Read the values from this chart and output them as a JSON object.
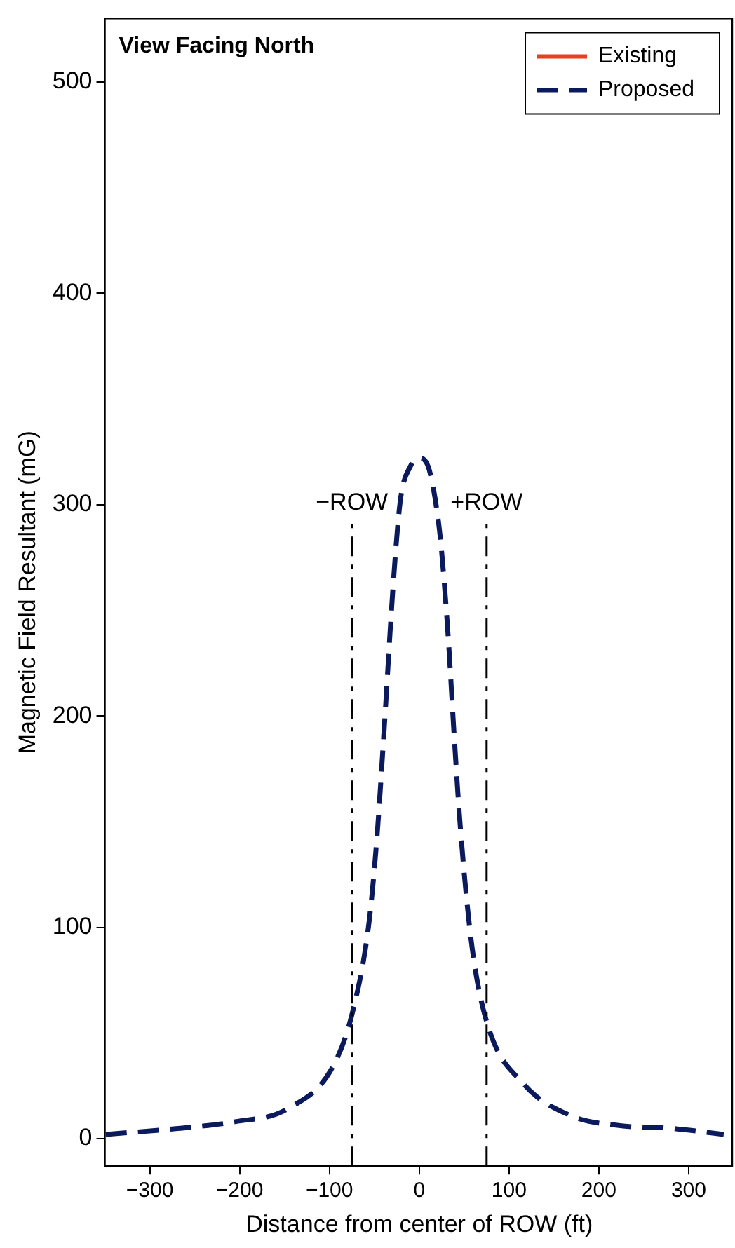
{
  "chart_data": {
    "type": "line",
    "xlabel": "Distance from center of ROW (ft)",
    "ylabel": "Magnetic Field Resultant (mG)",
    "xlim": [
      -350,
      350
    ],
    "xticks": [
      -300,
      -200,
      -100,
      0,
      100,
      200,
      300
    ],
    "ylim": [
      -13,
      530
    ],
    "yticks": [
      0,
      100,
      200,
      300,
      400,
      500
    ],
    "grid": false,
    "legend": "top right",
    "marker": "none",
    "annotations": [
      "View Facing North"
    ],
    "ref_lines": [
      {
        "axis": "x",
        "value": -75,
        "label": "−ROW",
        "color": "#000000",
        "line_style": "dashdot"
      },
      {
        "axis": "x",
        "value": 75,
        "label": "+ROW",
        "color": "#000000",
        "line_style": "dashdot"
      }
    ],
    "series": [
      {
        "name": "Existing",
        "color": "#e8401c",
        "line_style": "solid"
      },
      {
        "name": "Proposed",
        "color": "#0a1a5c",
        "line_style": "dashed",
        "x": [
          -349,
          -264,
          -205,
          -147,
          -95,
          -73,
          -56,
          -47,
          -39,
          -29,
          -21,
          -10,
          0,
          10,
          18,
          24,
          32,
          39,
          46,
          59,
          76,
          116,
          168,
          227,
          277,
          339
        ],
        "values": [
          2,
          5,
          8,
          14,
          35,
          62,
          102,
          143,
          194,
          262,
          302,
          318,
          322,
          318,
          302,
          282,
          239,
          190,
          146,
          90,
          54,
          26,
          11,
          6,
          5,
          2
        ]
      }
    ]
  }
}
